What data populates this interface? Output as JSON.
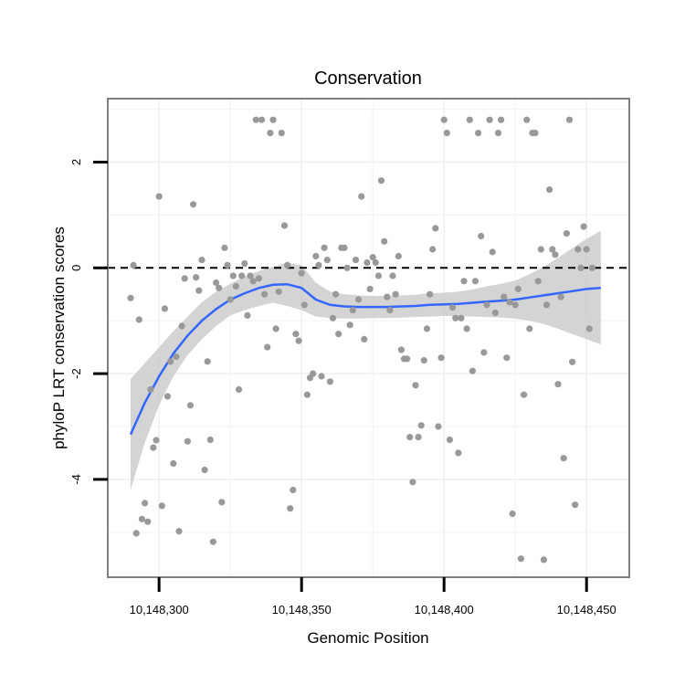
{
  "chart_data": {
    "type": "scatter",
    "title": "Conservation",
    "xlabel": "Genomic Position",
    "ylabel": "phyloP LRT conservation scores",
    "xlim": [
      10148282,
      10148465
    ],
    "ylim": [
      -5.85,
      3.2
    ],
    "x_ticks": [
      {
        "value": 10148300,
        "label": "10,148,300"
      },
      {
        "value": 10148350,
        "label": "10,148,350"
      },
      {
        "value": 10148400,
        "label": "10,148,400"
      },
      {
        "value": 10148450,
        "label": "10,148,450"
      }
    ],
    "y_ticks": [
      {
        "value": -4,
        "label": "-4"
      },
      {
        "value": -2,
        "label": "-2"
      },
      {
        "value": 0,
        "label": "0"
      },
      {
        "value": 2,
        "label": "2"
      }
    ],
    "reference_line": {
      "y": 0,
      "style": "dashed",
      "color": "#000000"
    },
    "grid": true,
    "colors": {
      "points": "#999999",
      "smooth_line": "#3366ff",
      "confidence_band": "#cccccc",
      "panel_border": "#7f7f7f",
      "grid": "#f2f2f2"
    },
    "series": [
      {
        "kind": "points",
        "points": [
          [
            10148290,
            -0.57
          ],
          [
            10148291,
            0.05
          ],
          [
            10148292,
            -5.02
          ],
          [
            10148293,
            -0.98
          ],
          [
            10148294,
            -4.75
          ],
          [
            10148295,
            -4.45
          ],
          [
            10148296,
            -4.8
          ],
          [
            10148297,
            -2.3
          ],
          [
            10148298,
            -3.4
          ],
          [
            10148299,
            -3.26
          ],
          [
            10148300,
            1.35
          ],
          [
            10148301,
            -4.5
          ],
          [
            10148302,
            -0.77
          ],
          [
            10148303,
            -2.43
          ],
          [
            10148304,
            -1.77
          ],
          [
            10148305,
            -3.7
          ],
          [
            10148306,
            -1.68
          ],
          [
            10148307,
            -4.98
          ],
          [
            10148308,
            -1.1
          ],
          [
            10148309,
            -0.2
          ],
          [
            10148310,
            -3.28
          ],
          [
            10148311,
            -2.6
          ],
          [
            10148312,
            1.2
          ],
          [
            10148313,
            -0.18
          ],
          [
            10148314,
            -0.43
          ],
          [
            10148315,
            0.15
          ],
          [
            10148316,
            -3.82
          ],
          [
            10148317,
            -1.77
          ],
          [
            10148318,
            -3.25
          ],
          [
            10148319,
            -5.18
          ],
          [
            10148320,
            -0.28
          ],
          [
            10148321,
            -0.38
          ],
          [
            10148322,
            -4.43
          ],
          [
            10148323,
            0.38
          ],
          [
            10148324,
            0.05
          ],
          [
            10148325,
            -0.6
          ],
          [
            10148326,
            -0.15
          ],
          [
            10148327,
            -0.35
          ],
          [
            10148328,
            -2.3
          ],
          [
            10148329,
            -0.15
          ],
          [
            10148330,
            0.08
          ],
          [
            10148331,
            -0.9
          ],
          [
            10148332,
            -0.15
          ],
          [
            10148333,
            -0.25
          ],
          [
            10148334,
            2.8
          ],
          [
            10148335,
            -0.2
          ],
          [
            10148336,
            2.8
          ],
          [
            10148337,
            -0.5
          ],
          [
            10148338,
            -1.5
          ],
          [
            10148339,
            2.55
          ],
          [
            10148340,
            2.8
          ],
          [
            10148341,
            -1.15
          ],
          [
            10148342,
            -0.45
          ],
          [
            10148343,
            2.55
          ],
          [
            10148344,
            0.8
          ],
          [
            10148345,
            0.05
          ],
          [
            10148346,
            -4.55
          ],
          [
            10148347,
            -4.2
          ],
          [
            10148348,
            -1.25
          ],
          [
            10148349,
            -1.38
          ],
          [
            10148350,
            -0.1
          ],
          [
            10148351,
            -0.7
          ],
          [
            10148352,
            -2.4
          ],
          [
            10148353,
            -2.08
          ],
          [
            10148354,
            -2.0
          ],
          [
            10148355,
            0.22
          ],
          [
            10148356,
            0.05
          ],
          [
            10148357,
            -2.05
          ],
          [
            10148358,
            0.38
          ],
          [
            10148359,
            0.15
          ],
          [
            10148360,
            -2.15
          ],
          [
            10148361,
            -0.95
          ],
          [
            10148362,
            -0.5
          ],
          [
            10148363,
            -1.25
          ],
          [
            10148364,
            0.38
          ],
          [
            10148365,
            0.38
          ],
          [
            10148366,
            0.0
          ],
          [
            10148367,
            -1.08
          ],
          [
            10148368,
            -0.8
          ],
          [
            10148369,
            0.15
          ],
          [
            10148370,
            -0.6
          ],
          [
            10148371,
            1.35
          ],
          [
            10148372,
            -1.35
          ],
          [
            10148373,
            0.1
          ],
          [
            10148374,
            -0.4
          ],
          [
            10148375,
            0.2
          ],
          [
            10148376,
            0.1
          ],
          [
            10148377,
            -0.15
          ],
          [
            10148378,
            1.65
          ],
          [
            10148379,
            0.5
          ],
          [
            10148380,
            -0.55
          ],
          [
            10148381,
            -0.8
          ],
          [
            10148382,
            -0.15
          ],
          [
            10148383,
            -0.5
          ],
          [
            10148384,
            0.22
          ],
          [
            10148385,
            -1.55
          ],
          [
            10148386,
            -1.72
          ],
          [
            10148387,
            -1.72
          ],
          [
            10148388,
            -3.2
          ],
          [
            10148389,
            -4.05
          ],
          [
            10148390,
            -2.22
          ],
          [
            10148391,
            -3.2
          ],
          [
            10148392,
            -2.98
          ],
          [
            10148393,
            -1.75
          ],
          [
            10148394,
            -1.15
          ],
          [
            10148395,
            -0.5
          ],
          [
            10148396,
            0.35
          ],
          [
            10148397,
            0.75
          ],
          [
            10148398,
            -3.0
          ],
          [
            10148399,
            -1.7
          ],
          [
            10148400,
            2.8
          ],
          [
            10148401,
            2.55
          ],
          [
            10148402,
            -3.25
          ],
          [
            10148403,
            -0.75
          ],
          [
            10148404,
            -0.95
          ],
          [
            10148405,
            -3.5
          ],
          [
            10148406,
            -0.95
          ],
          [
            10148407,
            -0.25
          ],
          [
            10148408,
            -1.15
          ],
          [
            10148409,
            2.8
          ],
          [
            10148410,
            -1.95
          ],
          [
            10148411,
            -0.25
          ],
          [
            10148412,
            2.55
          ],
          [
            10148413,
            0.6
          ],
          [
            10148414,
            -1.6
          ],
          [
            10148415,
            -0.7
          ],
          [
            10148416,
            2.8
          ],
          [
            10148417,
            0.3
          ],
          [
            10148418,
            -0.85
          ],
          [
            10148419,
            2.55
          ],
          [
            10148420,
            2.8
          ],
          [
            10148421,
            -0.55
          ],
          [
            10148422,
            -1.7
          ],
          [
            10148423,
            -0.65
          ],
          [
            10148424,
            -4.65
          ],
          [
            10148425,
            -0.7
          ],
          [
            10148426,
            -0.4
          ],
          [
            10148427,
            -5.5
          ],
          [
            10148428,
            -2.4
          ],
          [
            10148429,
            2.8
          ],
          [
            10148430,
            -1.15
          ],
          [
            10148431,
            2.55
          ],
          [
            10148432,
            2.55
          ],
          [
            10148433,
            -0.25
          ],
          [
            10148434,
            0.35
          ],
          [
            10148435,
            -5.52
          ],
          [
            10148436,
            -0.7
          ],
          [
            10148437,
            1.48
          ],
          [
            10148438,
            0.35
          ],
          [
            10148439,
            0.25
          ],
          [
            10148440,
            -2.2
          ],
          [
            10148441,
            -0.55
          ],
          [
            10148442,
            -3.6
          ],
          [
            10148443,
            0.65
          ],
          [
            10148444,
            2.8
          ],
          [
            10148445,
            -1.78
          ],
          [
            10148446,
            -4.48
          ],
          [
            10148447,
            0.35
          ],
          [
            10148448,
            0.0
          ],
          [
            10148449,
            0.78
          ],
          [
            10148450,
            0.35
          ],
          [
            10148451,
            -1.15
          ],
          [
            10148452,
            0.0
          ]
        ]
      },
      {
        "kind": "smooth",
        "x": [
          10148290,
          10148295,
          10148300,
          10148305,
          10148310,
          10148315,
          10148320,
          10148325,
          10148330,
          10148335,
          10148340,
          10148345,
          10148350,
          10148355,
          10148360,
          10148365,
          10148370,
          10148375,
          10148380,
          10148385,
          10148390,
          10148395,
          10148400,
          10148405,
          10148410,
          10148415,
          10148420,
          10148425,
          10148430,
          10148435,
          10148440,
          10148445,
          10148450,
          10148455
        ],
        "y": [
          -3.15,
          -2.55,
          -2.05,
          -1.62,
          -1.28,
          -1.0,
          -0.78,
          -0.6,
          -0.48,
          -0.38,
          -0.32,
          -0.31,
          -0.38,
          -0.6,
          -0.7,
          -0.73,
          -0.74,
          -0.74,
          -0.74,
          -0.73,
          -0.72,
          -0.7,
          -0.69,
          -0.68,
          -0.66,
          -0.64,
          -0.62,
          -0.6,
          -0.56,
          -0.52,
          -0.48,
          -0.44,
          -0.4,
          -0.38
        ],
        "lower": [
          -4.2,
          -3.3,
          -2.6,
          -2.05,
          -1.65,
          -1.35,
          -1.1,
          -0.9,
          -0.8,
          -0.72,
          -0.66,
          -0.72,
          -0.8,
          -0.92,
          -0.95,
          -0.96,
          -0.96,
          -0.95,
          -0.95,
          -0.94,
          -0.93,
          -0.92,
          -0.91,
          -0.91,
          -0.92,
          -0.93,
          -0.94,
          -0.96,
          -1.0,
          -1.06,
          -1.15,
          -1.25,
          -1.35,
          -1.45
        ],
        "upper": [
          -2.1,
          -1.8,
          -1.5,
          -1.2,
          -0.92,
          -0.65,
          -0.45,
          -0.3,
          -0.16,
          -0.06,
          0.02,
          0.1,
          0.05,
          -0.28,
          -0.45,
          -0.5,
          -0.52,
          -0.53,
          -0.53,
          -0.52,
          -0.51,
          -0.48,
          -0.47,
          -0.45,
          -0.41,
          -0.35,
          -0.3,
          -0.24,
          -0.12,
          0.02,
          0.19,
          0.37,
          0.55,
          0.7
        ]
      }
    ]
  }
}
